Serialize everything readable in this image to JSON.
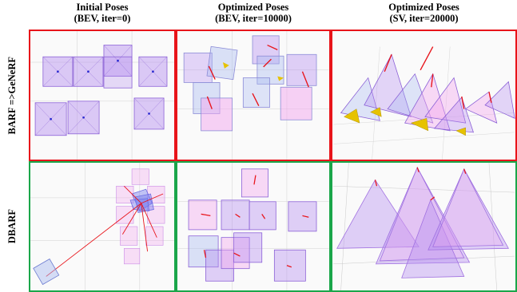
{
  "columns": [
    {
      "line1": "Initial Poses",
      "line2": "(BEV, iter=0)"
    },
    {
      "line1": "Optimized Poses",
      "line2": "(BEV, iter=10000)"
    },
    {
      "line1": "Optimized Poses",
      "line2": "(SV, iter=20000)"
    }
  ],
  "rows": [
    {
      "label": "BARF =>GeNeRF",
      "frame_color": "#e8141a"
    },
    {
      "label": "DBARF",
      "frame_color": "#1aa64a"
    }
  ],
  "colors": {
    "camera_fill_purple": "#b48cf0",
    "camera_fill_pink": "#f2a6ee",
    "camera_fill_blue": "#a7b8f0",
    "pose_error_line": "#e8141a",
    "gold_accent": "#e6c200"
  }
}
